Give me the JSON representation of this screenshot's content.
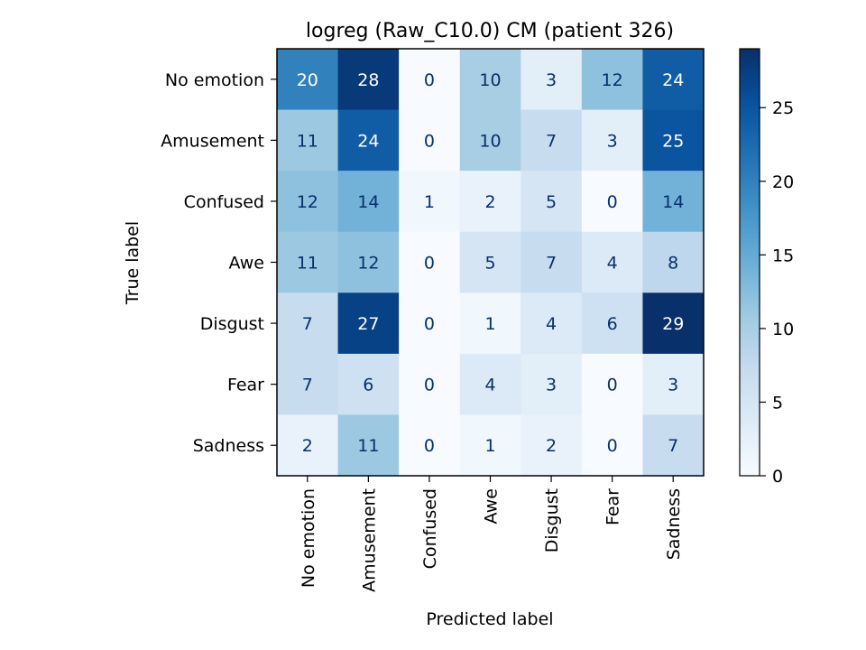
{
  "chart_data": {
    "type": "heatmap",
    "title": "logreg (Raw_C10.0) CM (patient 326)",
    "xlabel": "Predicted label",
    "ylabel": "True label",
    "x_categories": [
      "No emotion",
      "Amusement",
      "Confused",
      "Awe",
      "Disgust",
      "Fear",
      "Sadness"
    ],
    "y_categories": [
      "No emotion",
      "Amusement",
      "Confused",
      "Awe",
      "Disgust",
      "Fear",
      "Sadness"
    ],
    "values": [
      [
        20,
        28,
        0,
        10,
        3,
        12,
        24
      ],
      [
        11,
        24,
        0,
        10,
        7,
        3,
        25
      ],
      [
        12,
        14,
        1,
        2,
        5,
        0,
        14
      ],
      [
        11,
        12,
        0,
        5,
        7,
        4,
        8
      ],
      [
        7,
        27,
        0,
        1,
        4,
        6,
        29
      ],
      [
        7,
        6,
        0,
        4,
        3,
        0,
        3
      ],
      [
        2,
        11,
        0,
        1,
        2,
        0,
        7
      ]
    ],
    "colorbar": {
      "ticks": [
        "0",
        "5",
        "10",
        "15",
        "20",
        "25"
      ],
      "range": [
        0,
        29
      ],
      "colormap": "Blues"
    },
    "text_colors": {
      "light": "#ffffff",
      "dark": "#08306b"
    }
  }
}
